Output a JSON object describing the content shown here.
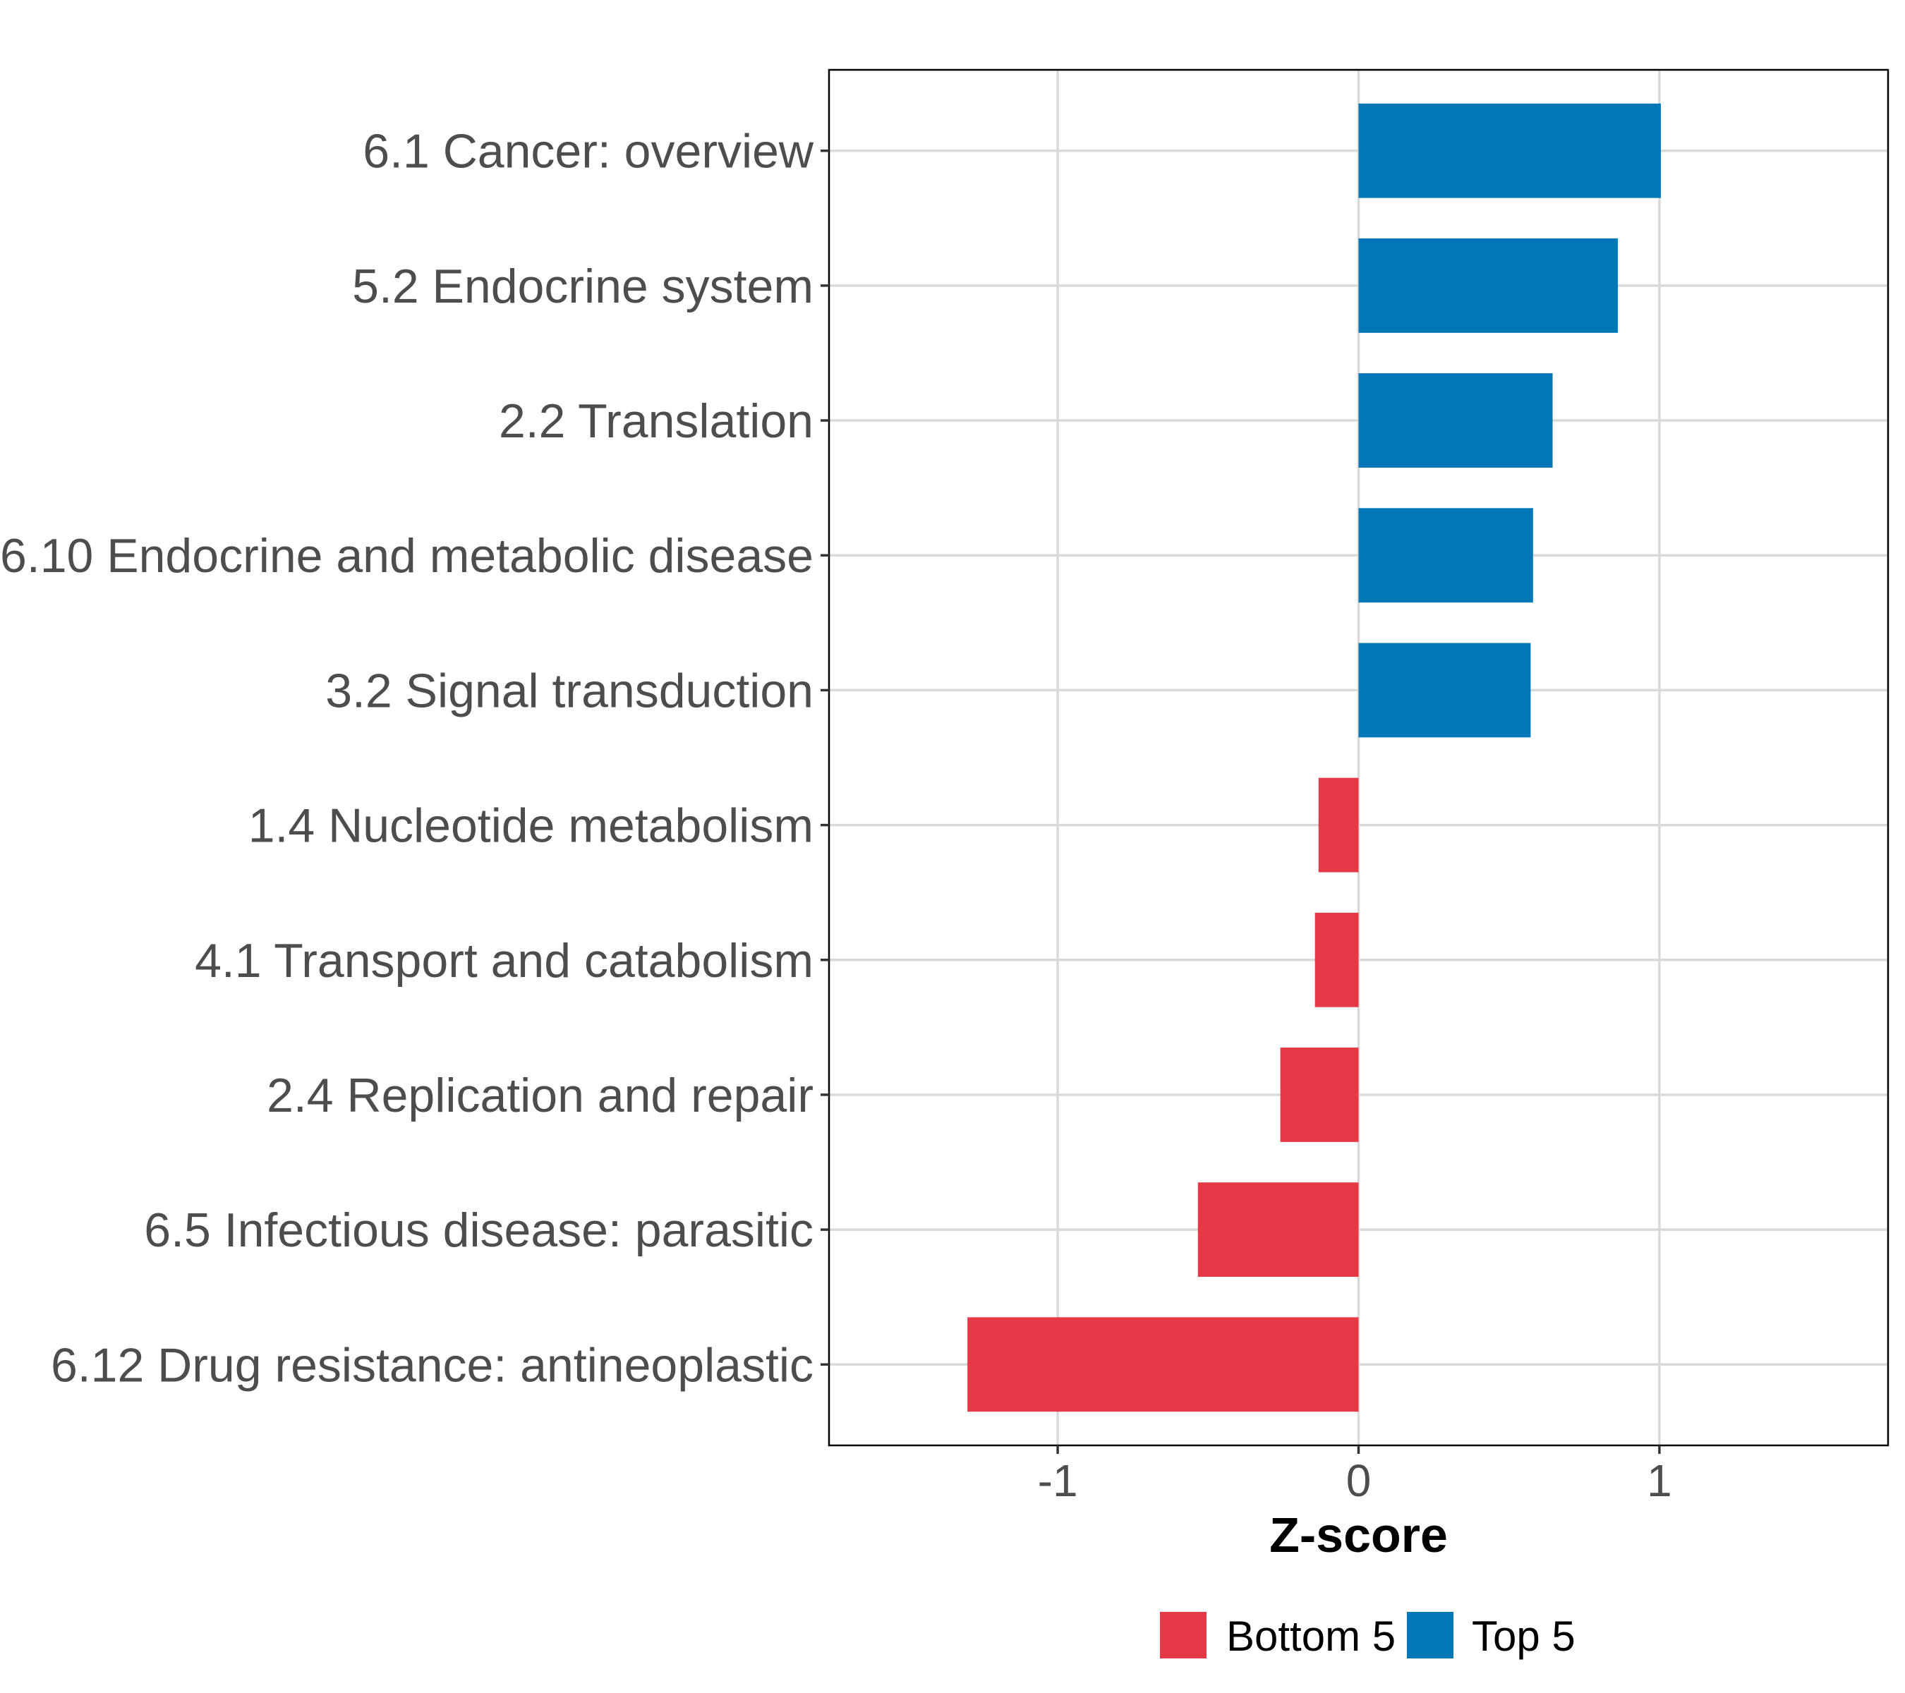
{
  "chart_data": {
    "type": "bar",
    "orientation": "horizontal",
    "title": "",
    "xlabel": "Z-score",
    "ylabel": "",
    "xlim": [
      -1.76,
      1.76
    ],
    "xticks": [
      -1,
      0,
      1
    ],
    "xtick_labels": [
      "-1",
      "0",
      "1"
    ],
    "grid": true,
    "legend_position": "bottom",
    "categories": [
      "6.1 Cancer: overview",
      "5.2 Endocrine system",
      "2.2 Translation",
      "6.10 Endocrine and metabolic disease",
      "3.2 Signal transduction",
      "1.4 Nucleotide metabolism",
      "4.1 Transport and catabolism",
      "2.4 Replication and repair",
      "6.5 Infectious disease: parasitic",
      "6.12 Drug resistance: antineoplastic"
    ],
    "values": [
      1.005,
      0.862,
      0.645,
      0.58,
      0.572,
      -0.133,
      -0.145,
      -0.26,
      -0.534,
      -1.3
    ],
    "groups": [
      "Top 5",
      "Top 5",
      "Top 5",
      "Top 5",
      "Top 5",
      "Bottom 5",
      "Bottom 5",
      "Bottom 5",
      "Bottom 5",
      "Bottom 5"
    ],
    "legend": [
      {
        "name": "Bottom 5",
        "color": "#E63946"
      },
      {
        "name": "Top 5",
        "color": "#0077B6"
      }
    ]
  }
}
